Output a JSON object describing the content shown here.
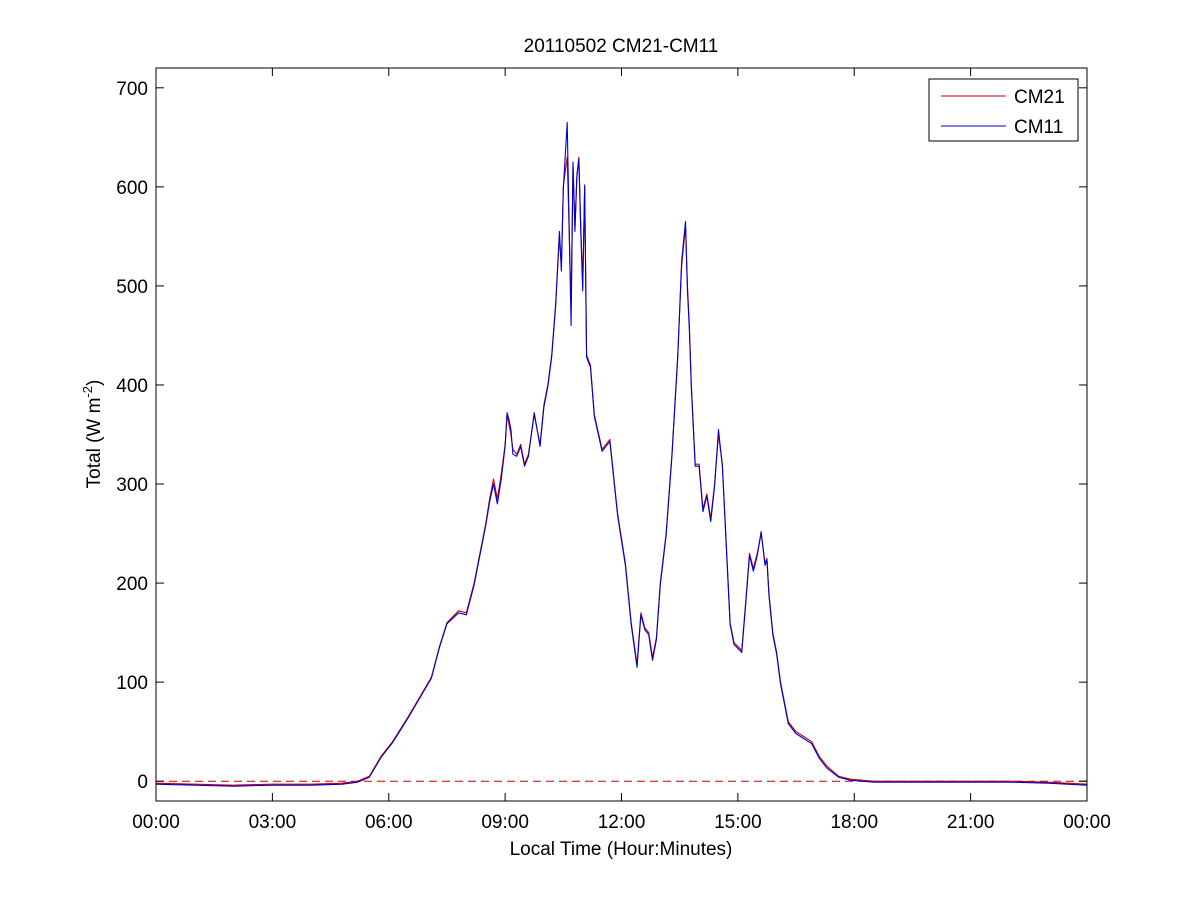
{
  "chart_data": {
    "type": "line",
    "title": "20110502 CM21-CM11",
    "xlabel": "Local Time (Hour:Minutes)",
    "ylabel": {
      "main": "Total (W m",
      "superscript": "-2",
      "close": ")"
    },
    "xlim": [
      0,
      24
    ],
    "ylim": [
      -20,
      720
    ],
    "x_unit": "hours",
    "xticks": [
      0,
      3,
      6,
      9,
      12,
      15,
      18,
      21,
      24
    ],
    "xtick_labels": [
      "00:00",
      "03:00",
      "06:00",
      "09:00",
      "12:00",
      "15:00",
      "18:00",
      "21:00",
      "00:00"
    ],
    "yticks": [
      0,
      100,
      200,
      300,
      400,
      500,
      600,
      700
    ],
    "ytick_labels": [
      "0",
      "100",
      "200",
      "300",
      "400",
      "500",
      "600",
      "700"
    ],
    "grid": false,
    "legend_position": "top-right",
    "reference_line": {
      "y": 0,
      "style": "dashed",
      "color": "#cc0000"
    },
    "series": [
      {
        "name": "CM21",
        "color": "#cc0000",
        "x": [
          0,
          1,
          2,
          3,
          4,
          4.8,
          5.2,
          5.5,
          5.8,
          6.1,
          6.5,
          6.8,
          7.1,
          7.3,
          7.5,
          7.8,
          8.0,
          8.2,
          8.4,
          8.5,
          8.6,
          8.7,
          8.8,
          8.9,
          9.0,
          9.05,
          9.1,
          9.15,
          9.2,
          9.3,
          9.4,
          9.5,
          9.6,
          9.75,
          9.9,
          10.0,
          10.1,
          10.2,
          10.3,
          10.4,
          10.45,
          10.5,
          10.6,
          10.7,
          10.75,
          10.8,
          10.85,
          10.9,
          10.95,
          11.0,
          11.05,
          11.1,
          11.2,
          11.3,
          11.5,
          11.7,
          11.9,
          12.1,
          12.25,
          12.4,
          12.5,
          12.6,
          12.7,
          12.8,
          12.9,
          13.0,
          13.15,
          13.3,
          13.45,
          13.55,
          13.65,
          13.7,
          13.75,
          13.8,
          13.9,
          14.0,
          14.1,
          14.2,
          14.3,
          14.4,
          14.5,
          14.6,
          14.7,
          14.8,
          14.9,
          15.1,
          15.2,
          15.3,
          15.4,
          15.5,
          15.6,
          15.7,
          15.75,
          15.8,
          15.9,
          16.0,
          16.1,
          16.3,
          16.5,
          16.7,
          16.9,
          17.1,
          17.3,
          17.6,
          17.9,
          18.2,
          18.5,
          19,
          20,
          21,
          22,
          23,
          24
        ],
        "y": [
          -2,
          -3,
          -4,
          -3,
          -3,
          -2,
          0,
          5,
          25,
          40,
          65,
          85,
          105,
          135,
          160,
          172,
          170,
          200,
          240,
          260,
          285,
          305,
          285,
          310,
          340,
          370,
          360,
          350,
          335,
          330,
          340,
          320,
          330,
          370,
          340,
          380,
          400,
          430,
          480,
          550,
          520,
          600,
          630,
          480,
          620,
          560,
          610,
          630,
          560,
          500,
          600,
          430,
          420,
          370,
          335,
          345,
          270,
          220,
          160,
          118,
          170,
          155,
          150,
          125,
          145,
          200,
          250,
          330,
          430,
          520,
          560,
          500,
          460,
          400,
          320,
          320,
          275,
          290,
          265,
          300,
          350,
          320,
          240,
          160,
          140,
          132,
          180,
          230,
          215,
          230,
          250,
          220,
          225,
          190,
          150,
          130,
          100,
          60,
          50,
          45,
          40,
          25,
          15,
          5,
          2,
          1,
          0,
          0,
          0,
          0,
          0,
          -1,
          -3
        ]
      },
      {
        "name": "CM11",
        "color": "#0000cc",
        "x": [
          0,
          1,
          2,
          3,
          4,
          4.8,
          5.2,
          5.5,
          5.8,
          6.1,
          6.5,
          6.8,
          7.1,
          7.3,
          7.5,
          7.8,
          8.0,
          8.2,
          8.4,
          8.5,
          8.6,
          8.7,
          8.8,
          8.9,
          9.0,
          9.05,
          9.1,
          9.15,
          9.2,
          9.3,
          9.4,
          9.5,
          9.6,
          9.75,
          9.9,
          10.0,
          10.1,
          10.2,
          10.3,
          10.4,
          10.45,
          10.5,
          10.6,
          10.7,
          10.75,
          10.8,
          10.85,
          10.9,
          10.95,
          11.0,
          11.05,
          11.1,
          11.2,
          11.3,
          11.5,
          11.7,
          11.9,
          12.1,
          12.25,
          12.4,
          12.5,
          12.6,
          12.7,
          12.8,
          12.9,
          13.0,
          13.15,
          13.3,
          13.45,
          13.55,
          13.65,
          13.7,
          13.75,
          13.8,
          13.9,
          14.0,
          14.1,
          14.2,
          14.3,
          14.4,
          14.5,
          14.6,
          14.7,
          14.8,
          14.9,
          15.1,
          15.2,
          15.3,
          15.4,
          15.5,
          15.6,
          15.7,
          15.75,
          15.8,
          15.9,
          16.0,
          16.1,
          16.3,
          16.5,
          16.7,
          16.9,
          17.1,
          17.3,
          17.6,
          17.9,
          18.2,
          18.5,
          19,
          20,
          21,
          22,
          23,
          24
        ],
        "y": [
          -3,
          -4,
          -5,
          -4,
          -4,
          -3,
          -1,
          4,
          24,
          39,
          64,
          84,
          104,
          134,
          159,
          170,
          168,
          198,
          238,
          258,
          282,
          300,
          280,
          305,
          338,
          372,
          365,
          355,
          330,
          328,
          338,
          318,
          328,
          372,
          338,
          378,
          398,
          428,
          478,
          555,
          515,
          598,
          665,
          460,
          625,
          555,
          612,
          628,
          555,
          495,
          602,
          428,
          418,
          368,
          333,
          343,
          268,
          218,
          158,
          115,
          168,
          153,
          148,
          122,
          143,
          198,
          248,
          328,
          428,
          525,
          565,
          495,
          455,
          398,
          318,
          318,
          272,
          288,
          262,
          298,
          355,
          318,
          238,
          158,
          138,
          130,
          178,
          228,
          212,
          228,
          252,
          218,
          223,
          188,
          148,
          128,
          98,
          58,
          48,
          43,
          38,
          23,
          13,
          4,
          1,
          0,
          -1,
          -1,
          -1,
          -1,
          -1,
          -2,
          -4
        ]
      }
    ]
  }
}
